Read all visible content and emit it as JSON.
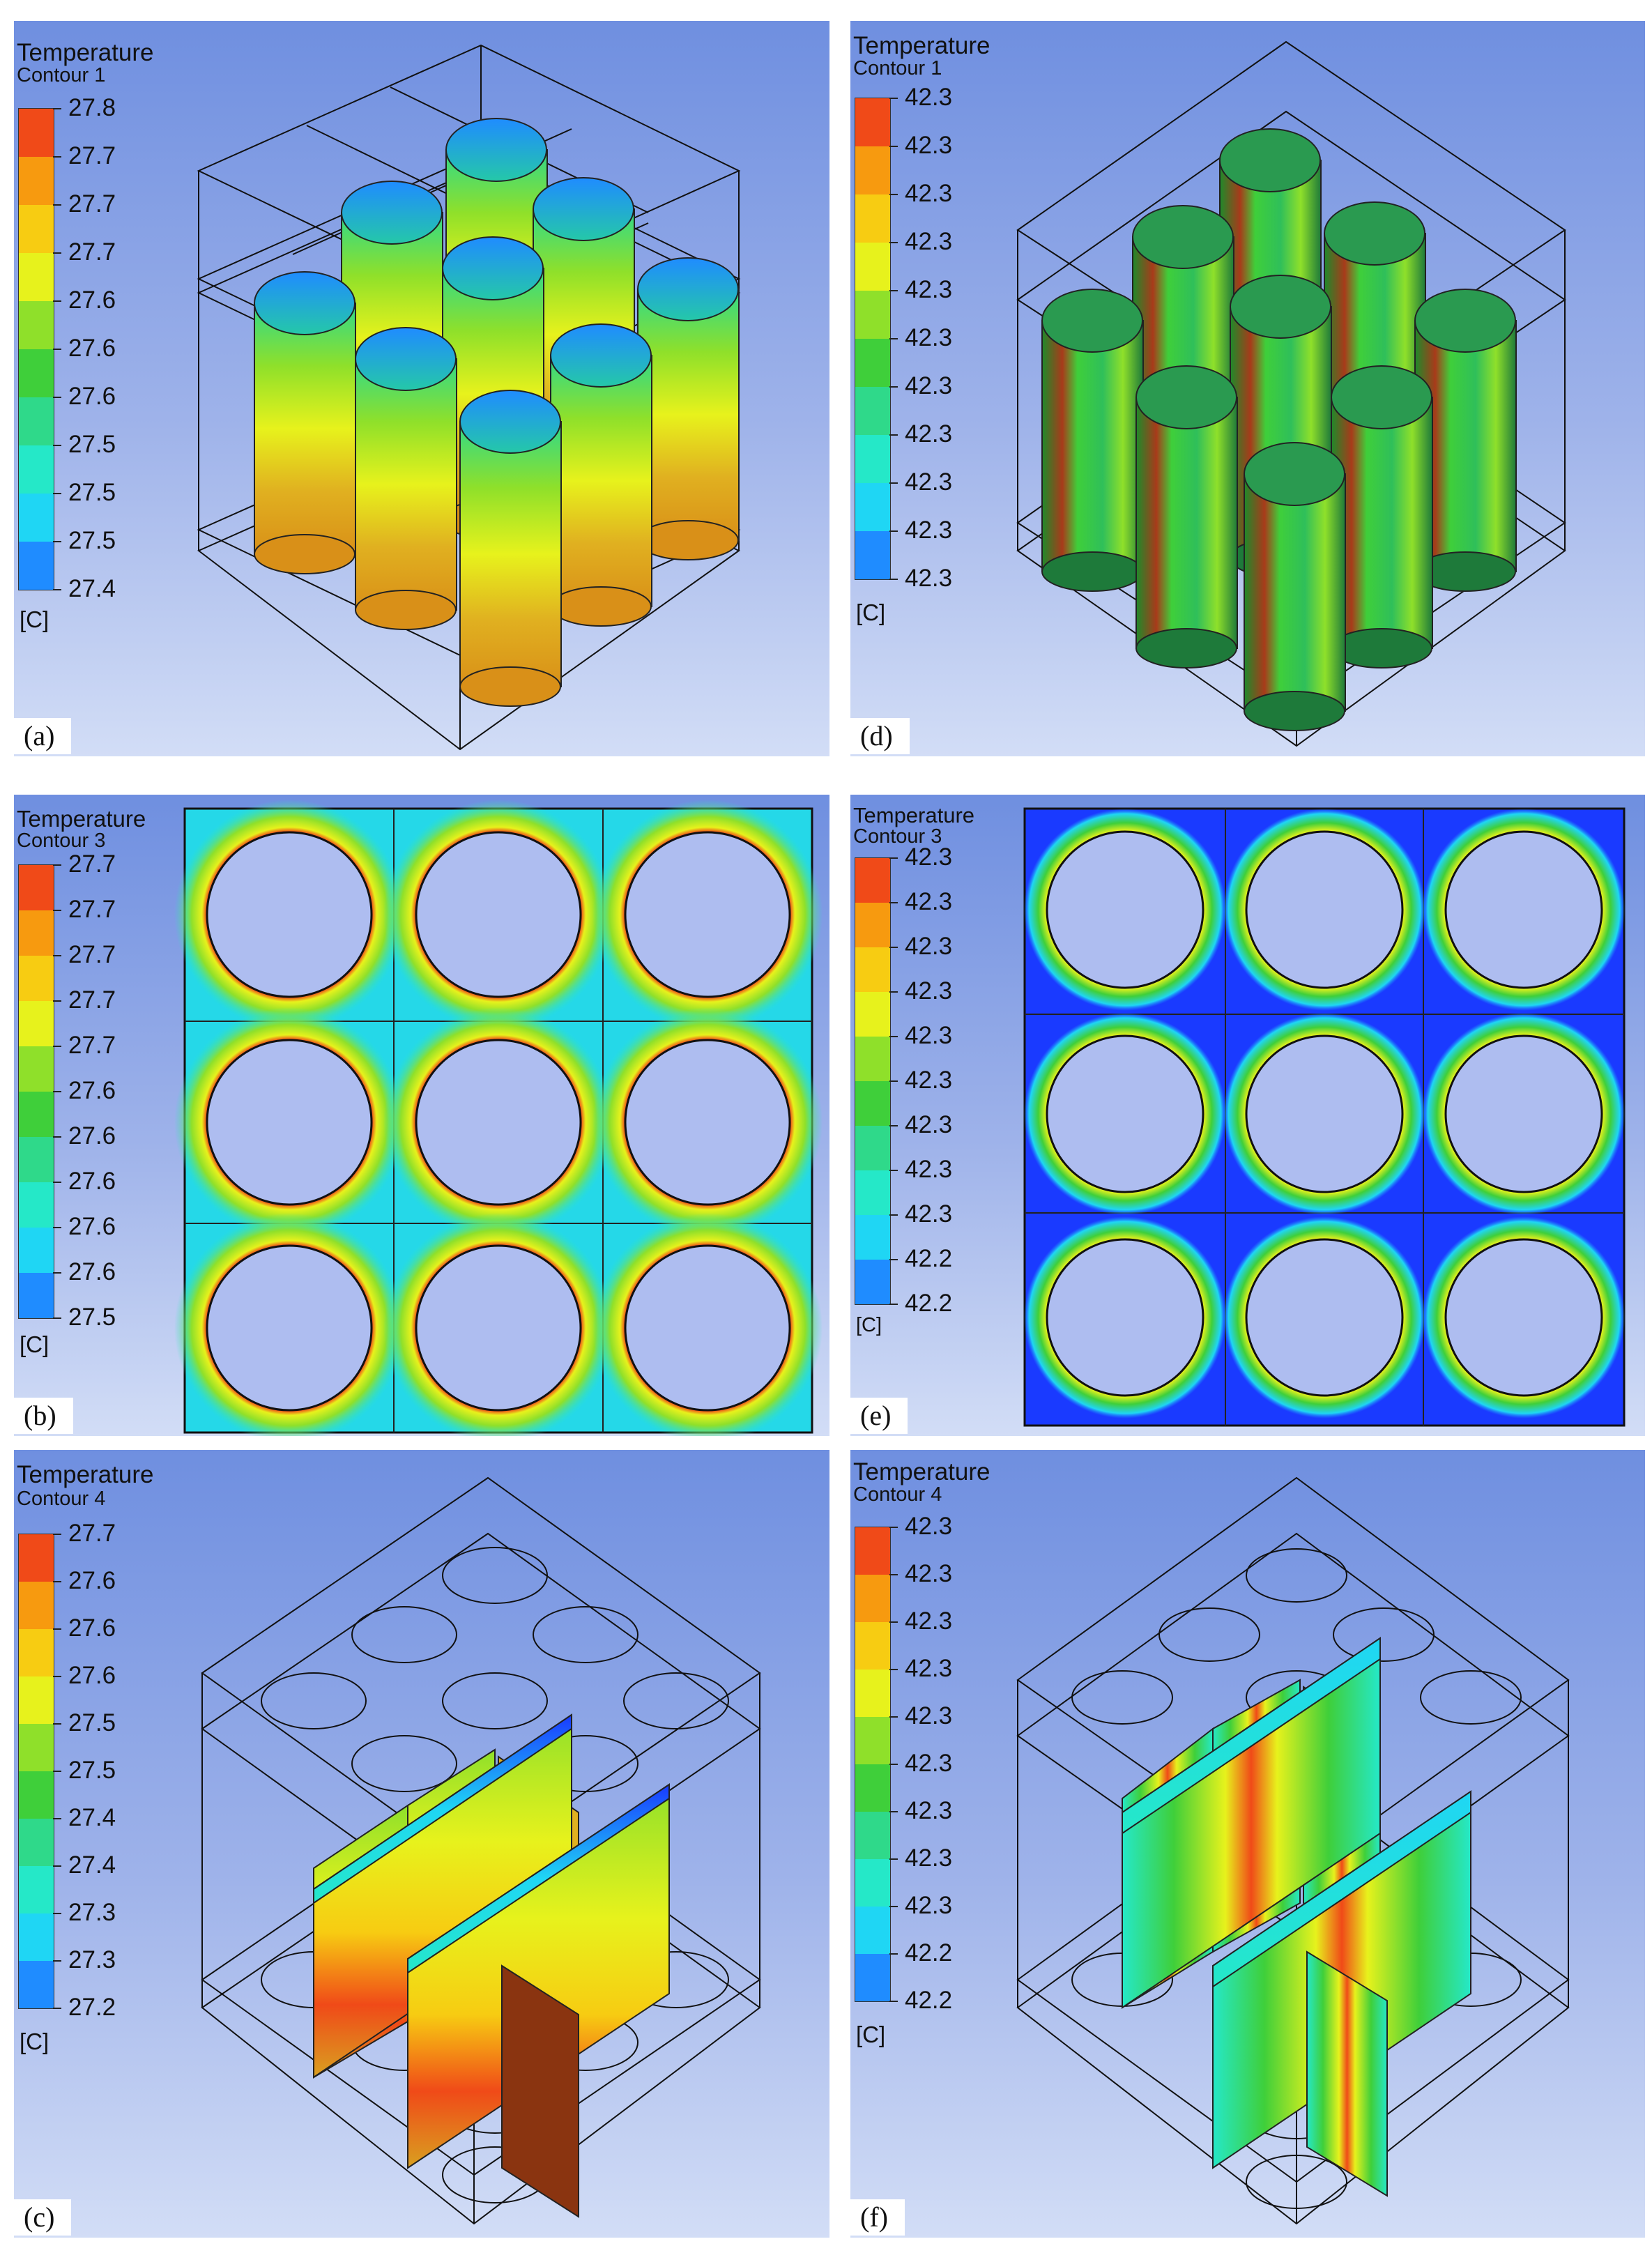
{
  "colormap": [
    "#1a1aff",
    "#1f8cff",
    "#1fd6f4",
    "#25e8c8",
    "#2fd98a",
    "#3fcf3a",
    "#8fe02a",
    "#e7f21c",
    "#f7cc12",
    "#f79a0f",
    "#f04a18"
  ],
  "panels": {
    "a": {
      "label": "(a)",
      "title": "Temperature",
      "subtitle": "Contour 1",
      "unit": "[C]",
      "ticks": [
        "27.8",
        "27.7",
        "27.7",
        "27.7",
        "27.6",
        "27.6",
        "27.6",
        "27.5",
        "27.5",
        "27.5",
        "27.4"
      ]
    },
    "b": {
      "label": "(b)",
      "title": "Temperature",
      "subtitle": "Contour 3",
      "unit": "[C]",
      "ticks": [
        "27.7",
        "27.7",
        "27.7",
        "27.7",
        "27.7",
        "27.6",
        "27.6",
        "27.6",
        "27.6",
        "27.6",
        "27.5"
      ]
    },
    "c": {
      "label": "(c)",
      "title": "Temperature",
      "subtitle": "Contour 4",
      "unit": "[C]",
      "ticks": [
        "27.7",
        "27.6",
        "27.6",
        "27.6",
        "27.5",
        "27.5",
        "27.4",
        "27.4",
        "27.3",
        "27.3",
        "27.2"
      ]
    },
    "d": {
      "label": "(d)",
      "title": "Temperature",
      "subtitle": "Contour 1",
      "unit": "[C]",
      "ticks": [
        "42.3",
        "42.3",
        "42.3",
        "42.3",
        "42.3",
        "42.3",
        "42.3",
        "42.3",
        "42.3",
        "42.3",
        "42.3"
      ]
    },
    "e": {
      "label": "(e)",
      "title": "Temperature",
      "subtitle": "Contour 3",
      "unit": "[C]",
      "ticks": [
        "42.3",
        "42.3",
        "42.3",
        "42.3",
        "42.3",
        "42.3",
        "42.3",
        "42.3",
        "42.3",
        "42.2",
        "42.2"
      ]
    },
    "f": {
      "label": "(f)",
      "title": "Temperature",
      "subtitle": "Contour 4",
      "unit": "[C]",
      "ticks": [
        "42.3",
        "42.3",
        "42.3",
        "42.3",
        "42.3",
        "42.3",
        "42.3",
        "42.3",
        "42.3",
        "42.2",
        "42.2"
      ]
    }
  }
}
